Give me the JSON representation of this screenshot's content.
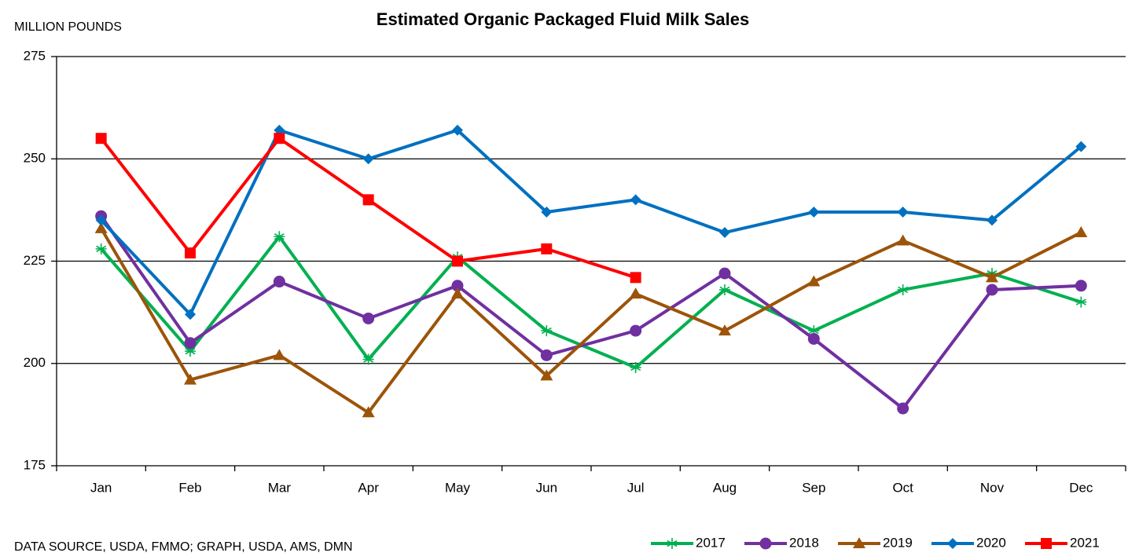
{
  "chart_data": {
    "type": "line",
    "title": "Estimated Organic Packaged Fluid Milk Sales",
    "y_label": "MILLION POUNDS",
    "source": "DATA SOURCE, USDA, FMMO; GRAPH, USDA, AMS, DMN",
    "categories": [
      "Jan",
      "Feb",
      "Mar",
      "Apr",
      "May",
      "Jun",
      "Jul",
      "Aug",
      "Sep",
      "Oct",
      "Nov",
      "Dec"
    ],
    "ylim": [
      175,
      275
    ],
    "yticks": [
      175,
      200,
      225,
      250,
      275
    ],
    "grid": true,
    "legend": "bottom-right",
    "series": [
      {
        "name": "2017",
        "color": "#00b050",
        "marker": "star",
        "values": [
          228,
          203,
          231,
          201,
          226,
          208,
          199,
          218,
          208,
          218,
          222,
          215
        ]
      },
      {
        "name": "2018",
        "color": "#7030a0",
        "marker": "circle",
        "values": [
          236,
          205,
          220,
          211,
          219,
          202,
          208,
          222,
          206,
          189,
          218,
          219
        ]
      },
      {
        "name": "2019",
        "color": "#9c5409",
        "marker": "triangle",
        "values": [
          233,
          196,
          202,
          188,
          217,
          197,
          217,
          208,
          220,
          230,
          221,
          232
        ]
      },
      {
        "name": "2020",
        "color": "#0070c0",
        "marker": "diamond",
        "values": [
          235,
          212,
          257,
          250,
          257,
          237,
          240,
          232,
          237,
          237,
          235,
          253
        ]
      },
      {
        "name": "2021",
        "color": "#ff0000",
        "marker": "square",
        "values": [
          255,
          227,
          255,
          240,
          225,
          228,
          221,
          null,
          null,
          null,
          null,
          null
        ]
      }
    ]
  }
}
